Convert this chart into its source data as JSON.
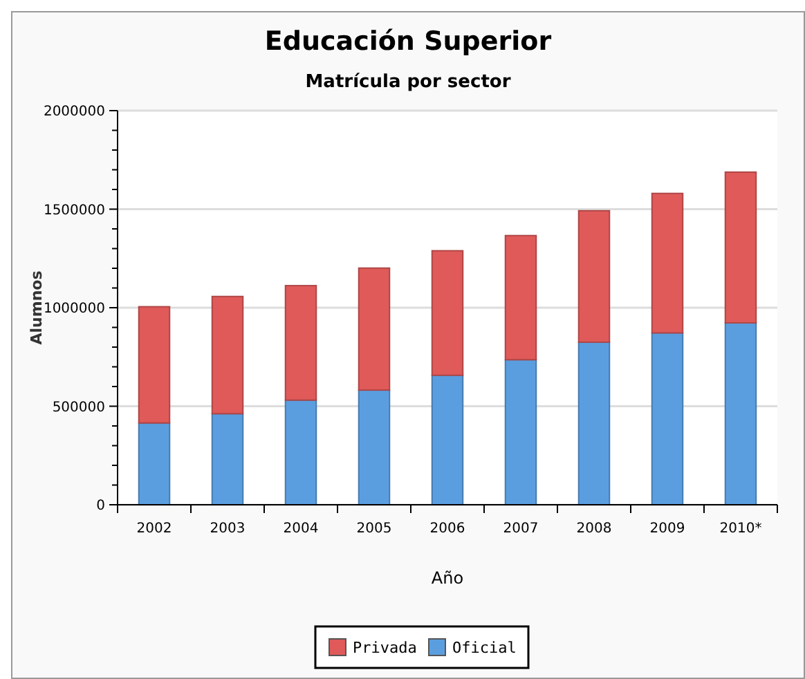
{
  "chart_data": {
    "type": "bar",
    "title": "Educación Superior",
    "subtitle": "Matrícula por sector",
    "xlabel": "Año",
    "ylabel": "Alumnos",
    "categories": [
      "2002",
      "2003",
      "2004",
      "2005",
      "2006",
      "2007",
      "2008",
      "2009",
      "2010*"
    ],
    "series": [
      {
        "name": "Oficial",
        "color": "#5b9ee0",
        "values": [
          415000,
          462000,
          531000,
          582000,
          657000,
          736000,
          825000,
          872000,
          923000
        ]
      },
      {
        "name": "Privada",
        "color": "#e05a5a",
        "values": [
          590000,
          595000,
          581000,
          619000,
          632000,
          630000,
          667000,
          708000,
          765000
        ]
      }
    ],
    "stacked": true,
    "ylim": [
      0,
      2000000
    ],
    "yticks": [
      0,
      {
        "value": 100000,
        "label": null
      },
      {
        "value": 200000,
        "label": null
      },
      {
        "value": 300000,
        "label": null
      },
      {
        "value": 400000,
        "label": null
      },
      500000,
      {
        "value": 600000,
        "label": null
      },
      {
        "value": 700000,
        "label": null
      },
      {
        "value": 800000,
        "label": null
      },
      {
        "value": 900000,
        "label": null
      },
      1000000,
      {
        "value": 1100000,
        "label": null
      },
      {
        "value": 1200000,
        "label": null
      },
      {
        "value": 1300000,
        "label": null
      },
      {
        "value": 1400000,
        "label": null
      },
      1500000,
      {
        "value": 1600000,
        "label": null
      },
      {
        "value": 1700000,
        "label": null
      },
      {
        "value": 1800000,
        "label": null
      },
      {
        "value": 1900000,
        "label": null
      },
      2000000
    ],
    "grid": "y",
    "legend": "bottom"
  }
}
